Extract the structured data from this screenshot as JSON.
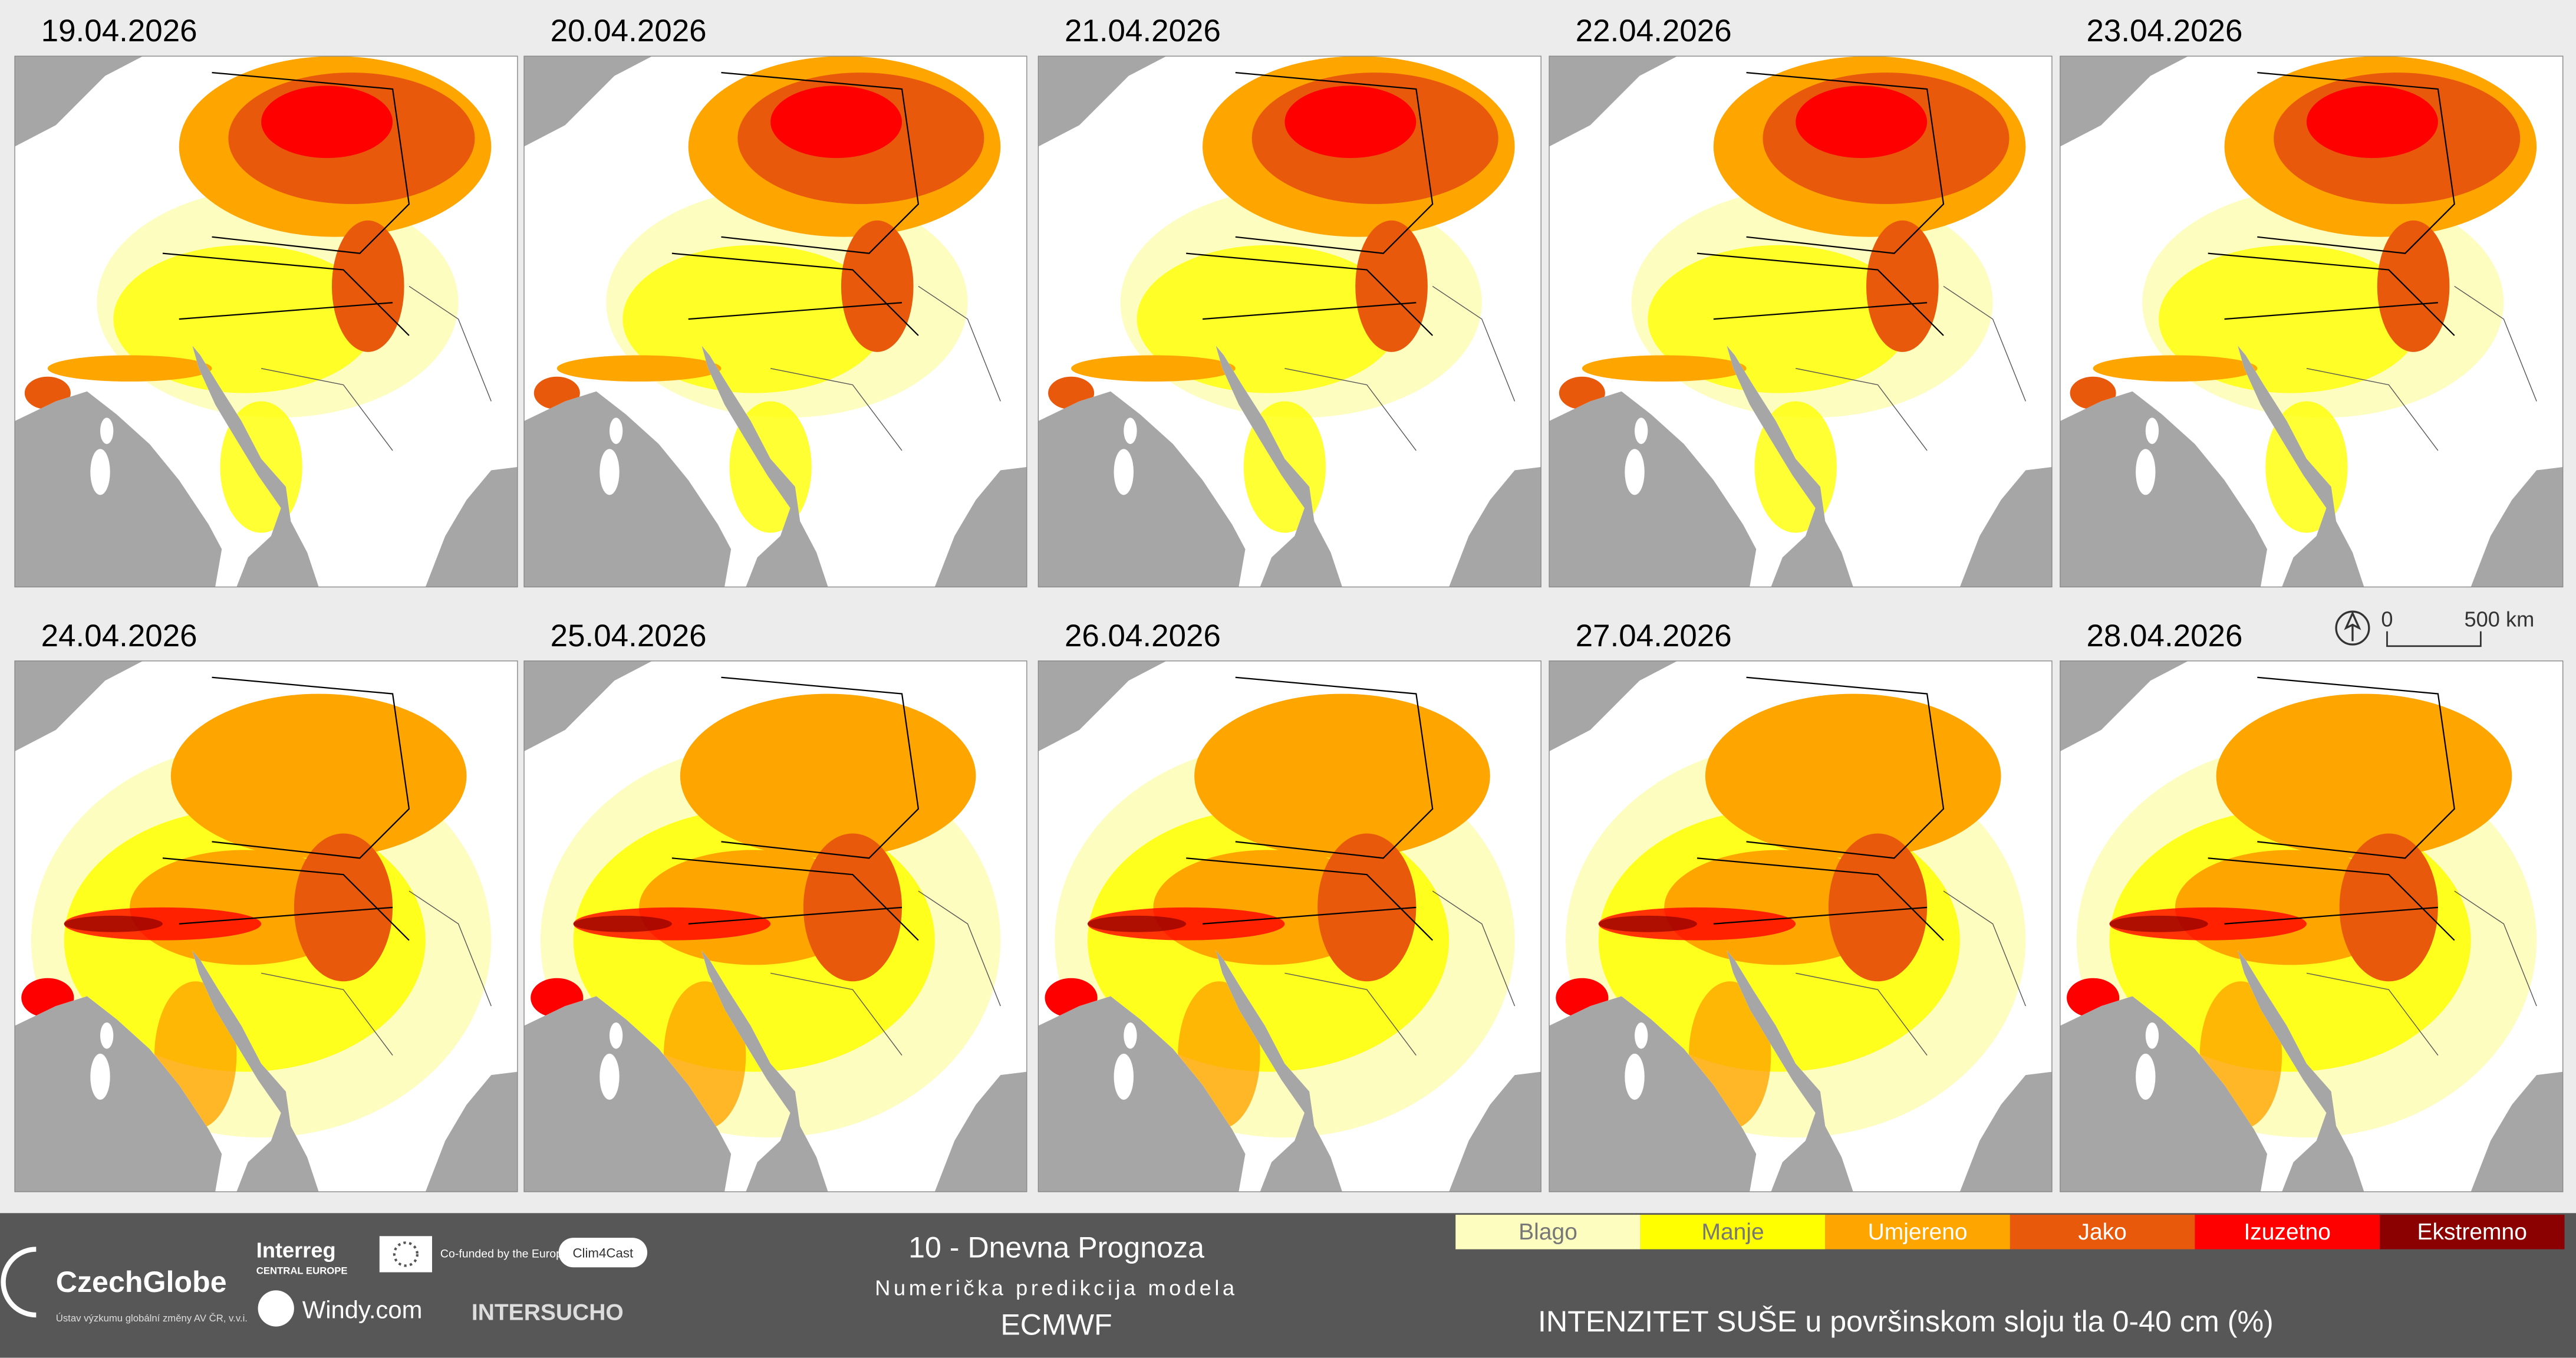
{
  "panels": [
    {
      "date": "19.04.2026"
    },
    {
      "date": "20.04.2026"
    },
    {
      "date": "21.04.2026"
    },
    {
      "date": "22.04.2026"
    },
    {
      "date": "23.04.2026"
    },
    {
      "date": "24.04.2026"
    },
    {
      "date": "25.04.2026"
    },
    {
      "date": "26.04.2026"
    },
    {
      "date": "27.04.2026"
    },
    {
      "date": "28.04.2026"
    }
  ],
  "scale_bar": {
    "start": "0",
    "end": "500 km"
  },
  "footer": {
    "logos": {
      "czechglobe": "CzechGlobe",
      "czechglobe_sub": "Ústav výzkumu globální změny AV ČR, v.v.i.",
      "interreg": "Interreg",
      "interreg_sub": "CENTRAL EUROPE",
      "eu": "Co-funded by the European Union",
      "clim4cast": "Clim4Cast",
      "windy": "Windy.com",
      "intersucho": "INTERSUCHO"
    },
    "title": "10 - Dnevna Prognoza",
    "subtitle": "Numerička predikcija modela",
    "model": "ECMWF",
    "legend": [
      {
        "label": "Blago",
        "color": "#fdfdc0"
      },
      {
        "label": "Manje",
        "color": "#ffff00"
      },
      {
        "label": "Umjereno",
        "color": "#ffa500"
      },
      {
        "label": "Jako",
        "color": "#e8590c"
      },
      {
        "label": "Izuzetno",
        "color": "#ff0000"
      },
      {
        "label": "Ekstremno",
        "color": "#8b0000"
      }
    ],
    "legend_title": "INTENZITET SUŠE u površinskom sloju tla 0-40 cm (%)"
  }
}
